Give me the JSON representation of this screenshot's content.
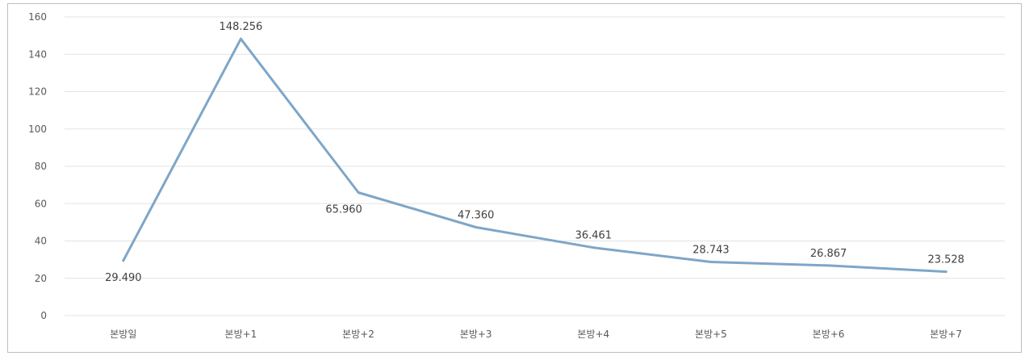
{
  "chart_data": {
    "type": "line",
    "categories": [
      "본방일",
      "본방+1",
      "본방+2",
      "본방+3",
      "본방+4",
      "본방+5",
      "본방+6",
      "본방+7"
    ],
    "series": [
      {
        "values": [
          29.49,
          148.256,
          65.96,
          47.36,
          36.461,
          28.743,
          26.867,
          23.528
        ],
        "value_labels": [
          "29.490",
          "148.256",
          "65.960",
          "47.360",
          "36.461",
          "28.743",
          "26.867",
          "23.528"
        ],
        "color": "#7ea6c8"
      }
    ],
    "yticks": [
      "0",
      "20",
      "40",
      "60",
      "80",
      "100",
      "120",
      "140",
      "160"
    ],
    "ylim": [
      0,
      160
    ],
    "grid": true,
    "legend": "none",
    "title": "",
    "xlabel": "",
    "ylabel": ""
  }
}
